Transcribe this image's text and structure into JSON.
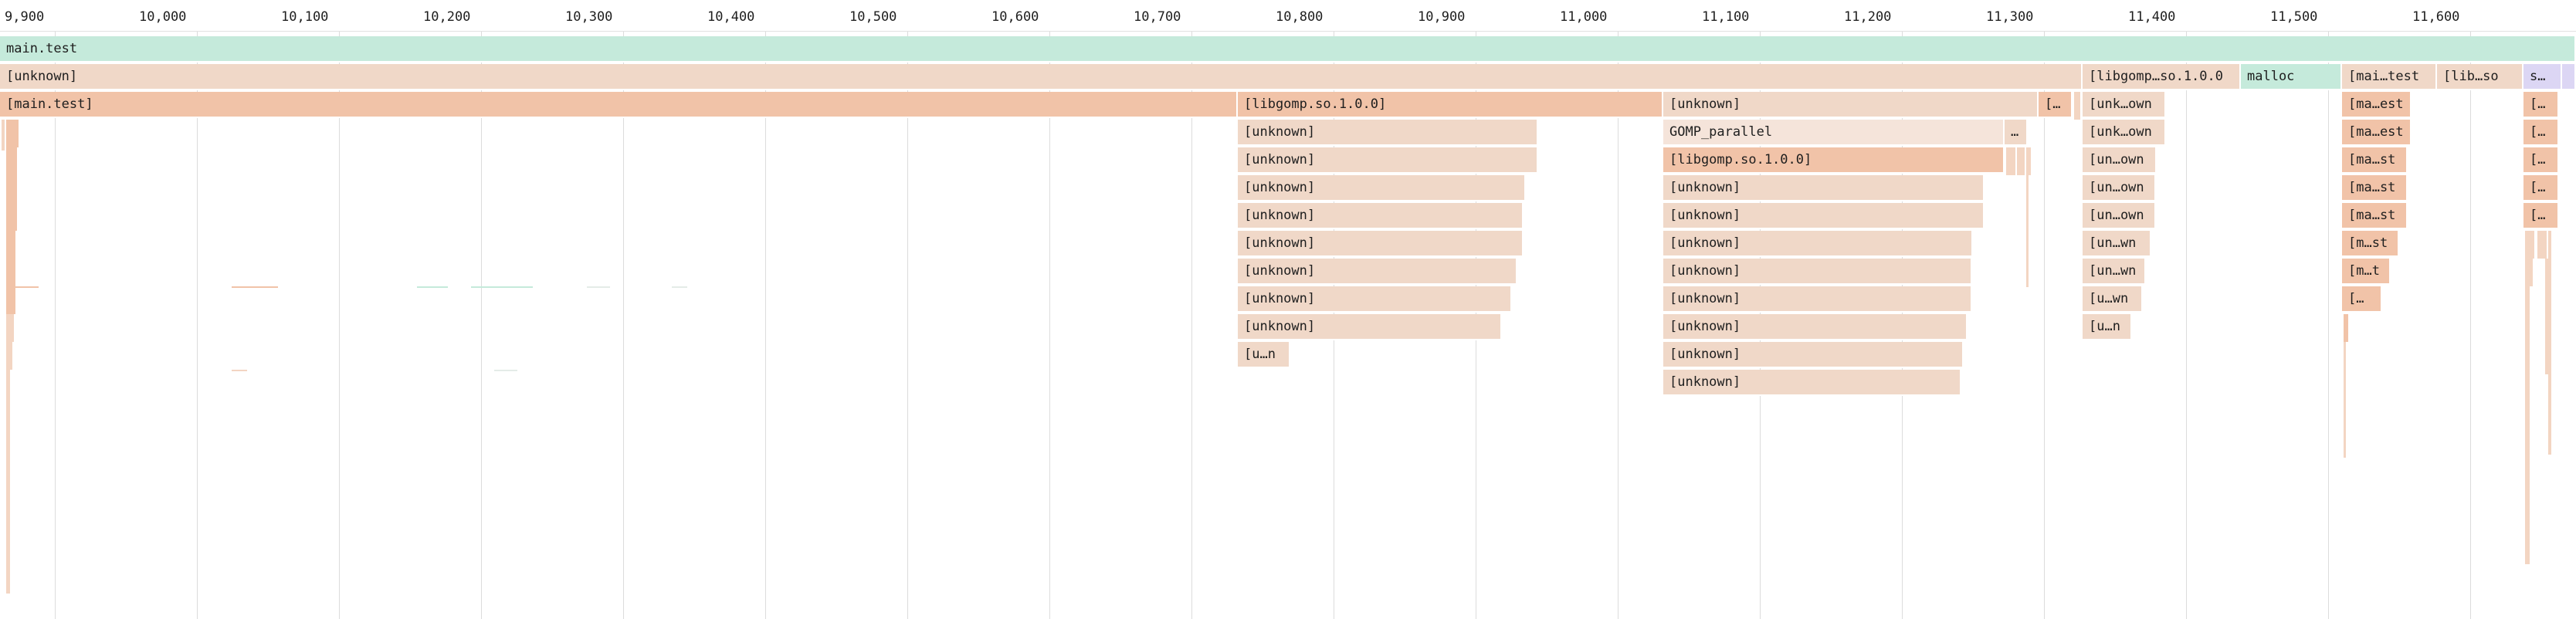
{
  "timeline": {
    "ticks": [
      "9,900",
      "10,000",
      "10,100",
      "10,200",
      "10,300",
      "10,400",
      "10,500",
      "10,600",
      "10,700",
      "10,800",
      "10,900",
      "11,000",
      "11,100",
      "11,200",
      "11,300",
      "11,400",
      "11,500",
      "11,600"
    ]
  },
  "colors": {
    "main": "#c5eadb",
    "unknown": "#f0d8c8",
    "hot": "#f1c3a8",
    "pale": "#f5e4da",
    "lilac": "#dcd6f4"
  },
  "frames": {
    "root": "main.test",
    "depth1": {
      "unknown": "[unknown]",
      "libgomp": "[libgomp…so.1.0.0",
      "malloc": "malloc",
      "main_test": "[mai…test",
      "lib_so": "[lib…so",
      "s": "s…"
    },
    "depth2": {
      "main_test": "[main.test]",
      "libgomp": "[libgomp.so.1.0.0]",
      "unknown_b": "[unknown]",
      "bracket": "[…",
      "unk_own": "[unk…own",
      "ma_est": "[ma…est",
      "br": "[…"
    },
    "depth3": {
      "unknown_a": "[unknown]",
      "gomp_parallel": "GOMP_parallel",
      "ellipsis": "…",
      "unk_own": "[unk…own",
      "ma_est": "[ma…est",
      "br": "[…"
    },
    "depth4": {
      "unknown_a": "[unknown]",
      "libgomp": "[libgomp.so.1.0.0]",
      "un_own": "[un…own",
      "ma_st": "[ma…st",
      "br": "[…"
    },
    "depth5": {
      "unknown_a": "[unknown]",
      "unknown_b": "[unknown]",
      "un_own": "[un…own",
      "ma_st": "[ma…st",
      "br": "[…"
    },
    "depth6": {
      "unknown_a": "[unknown]",
      "unknown_b": "[unknown]",
      "un_own": "[un…own",
      "ma_st": "[ma…st",
      "br": "[…"
    },
    "depth7": {
      "unknown_a": "[unknown]",
      "unknown_b": "[unknown]",
      "un_wn": "[un…wn",
      "m_st": "[m…st"
    },
    "depth8": {
      "unknown_a": "[unknown]",
      "unknown_b": "[unknown]",
      "un_wn": "[un…wn",
      "m_t": "[m…t"
    },
    "depth9": {
      "unknown_a": "[unknown]",
      "unknown_b": "[unknown]",
      "u_wn": "[u…wn",
      "br": "[…"
    },
    "depth10": {
      "unknown_a": "[unknown]",
      "unknown_b": "[unknown]",
      "u_n": "[u…n"
    },
    "depth11": {
      "u_n": "[u…n",
      "unknown_b": "[unknown]"
    },
    "depth12": {
      "unknown_b": "[unknown]"
    }
  }
}
